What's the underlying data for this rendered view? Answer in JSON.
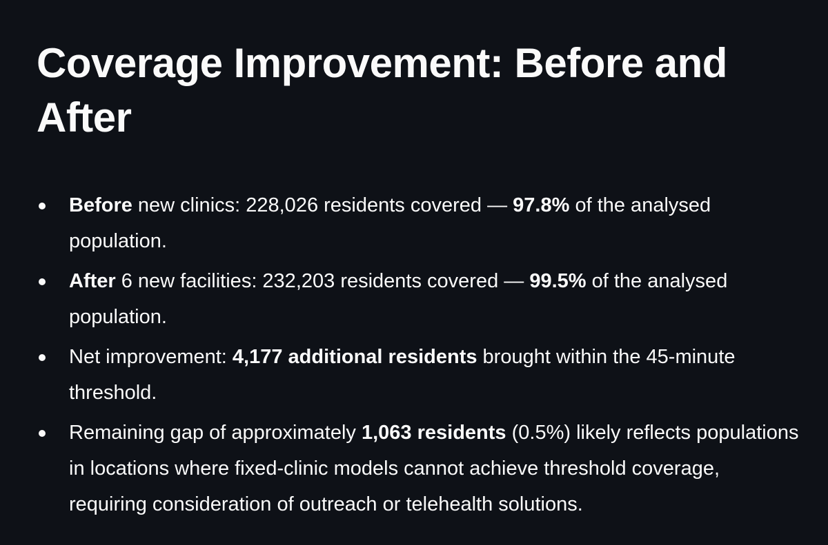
{
  "title": "Coverage Improvement: Before and After",
  "bullets": [
    {
      "b1": "Before",
      "t1": " new clinics: 228,026 residents covered — ",
      "b2": "97.8%",
      "t2": " of the analysed population."
    },
    {
      "b1": "After",
      "t1": " 6 new facilities: 232,203 residents covered — ",
      "b2": "99.5%",
      "t2": " of the analysed population."
    },
    {
      "t0": "Net improvement: ",
      "b1": "4,177 additional residents",
      "t1": " brought within the 45-minute threshold."
    },
    {
      "t0": "Remaining gap of approximately ",
      "b1": "1,063 residents",
      "t1": " (0.5%) likely reflects populations in locations where fixed-clinic models cannot achieve threshold coverage, requiring consideration of outreach or telehealth solutions."
    }
  ]
}
